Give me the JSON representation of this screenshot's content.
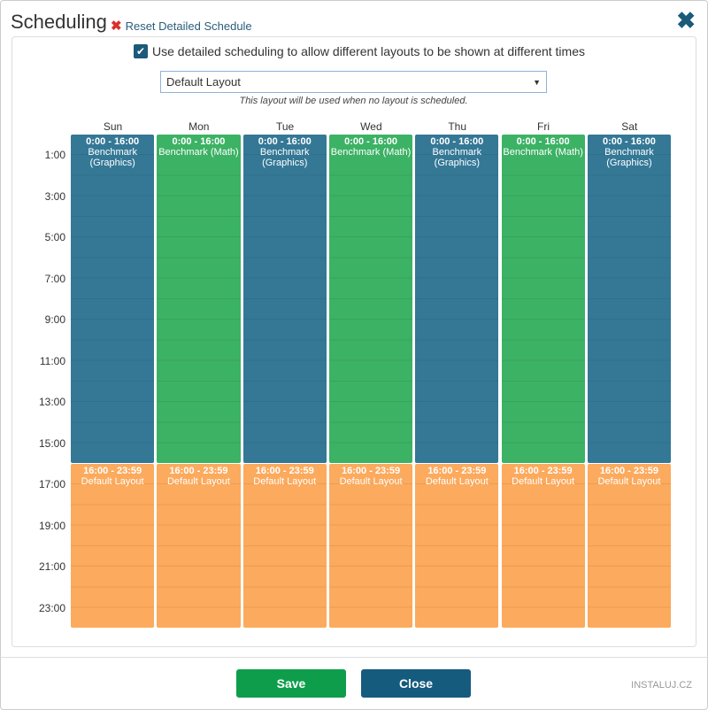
{
  "header": {
    "title": "Scheduling",
    "reset_label": "Reset Detailed Schedule",
    "close_icon": "✖"
  },
  "options": {
    "detailed_checkbox_label": "Use detailed scheduling to allow different layouts to be shown at different times",
    "detailed_checked": true,
    "default_layout": "Default Layout",
    "default_layout_hint": "This layout will be used when no layout is scheduled."
  },
  "days": [
    "Sun",
    "Mon",
    "Tue",
    "Wed",
    "Thu",
    "Fri",
    "Sat"
  ],
  "hour_labels": [
    "1:00",
    "3:00",
    "5:00",
    "7:00",
    "9:00",
    "11:00",
    "13:00",
    "15:00",
    "17:00",
    "19:00",
    "21:00",
    "23:00"
  ],
  "colors": {
    "graphics": "#347896",
    "math": "#3cb265",
    "default": "#fcaa5d"
  },
  "schedule": [
    [
      {
        "time": "0:00 - 16:00",
        "layout": "Benchmark (Graphics)",
        "color": "graphics",
        "start": 0,
        "end": 16
      },
      {
        "time": "16:00 - 23:59",
        "layout": "Default Layout",
        "color": "default",
        "start": 16,
        "end": 24
      }
    ],
    [
      {
        "time": "0:00 - 16:00",
        "layout": "Benchmark (Math)",
        "color": "math",
        "start": 0,
        "end": 16
      },
      {
        "time": "16:00 - 23:59",
        "layout": "Default Layout",
        "color": "default",
        "start": 16,
        "end": 24
      }
    ],
    [
      {
        "time": "0:00 - 16:00",
        "layout": "Benchmark (Graphics)",
        "color": "graphics",
        "start": 0,
        "end": 16
      },
      {
        "time": "16:00 - 23:59",
        "layout": "Default Layout",
        "color": "default",
        "start": 16,
        "end": 24
      }
    ],
    [
      {
        "time": "0:00 - 16:00",
        "layout": "Benchmark (Math)",
        "color": "math",
        "start": 0,
        "end": 16
      },
      {
        "time": "16:00 - 23:59",
        "layout": "Default Layout",
        "color": "default",
        "start": 16,
        "end": 24
      }
    ],
    [
      {
        "time": "0:00 - 16:00",
        "layout": "Benchmark (Graphics)",
        "color": "graphics",
        "start": 0,
        "end": 16
      },
      {
        "time": "16:00 - 23:59",
        "layout": "Default Layout",
        "color": "default",
        "start": 16,
        "end": 24
      }
    ],
    [
      {
        "time": "0:00 - 16:00",
        "layout": "Benchmark (Math)",
        "color": "math",
        "start": 0,
        "end": 16
      },
      {
        "time": "16:00 - 23:59",
        "layout": "Default Layout",
        "color": "default",
        "start": 16,
        "end": 24
      }
    ],
    [
      {
        "time": "0:00 - 16:00",
        "layout": "Benchmark (Graphics)",
        "color": "graphics",
        "start": 0,
        "end": 16
      },
      {
        "time": "16:00 - 23:59",
        "layout": "Default Layout",
        "color": "default",
        "start": 16,
        "end": 24
      }
    ]
  ],
  "footer": {
    "save_label": "Save",
    "close_label": "Close",
    "save_color": "#0e9e4b",
    "close_color": "#155b7d"
  },
  "watermark": "INSTALUJ.CZ"
}
